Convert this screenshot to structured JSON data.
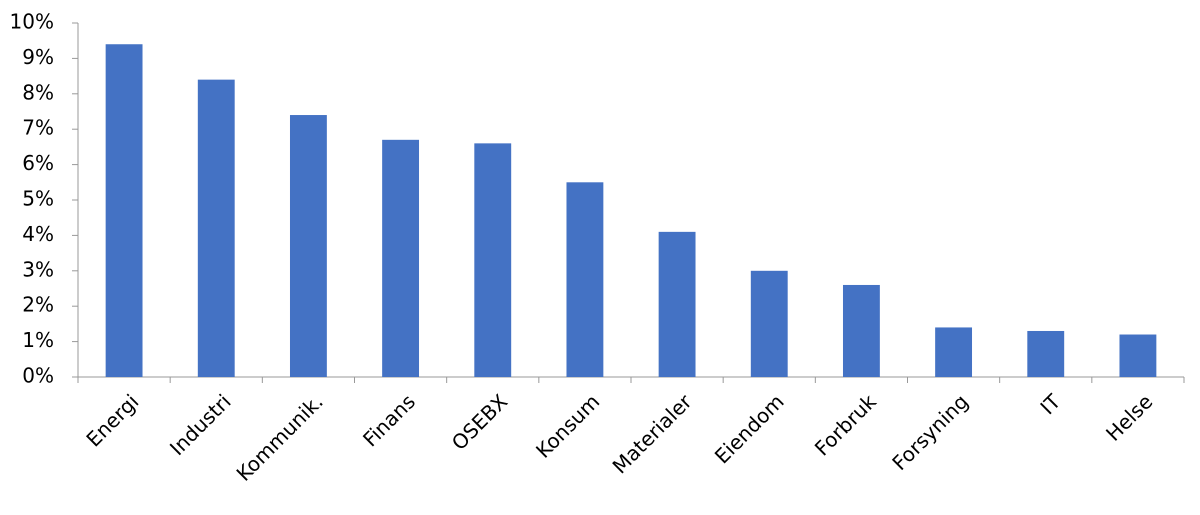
{
  "chart_data": {
    "type": "bar",
    "categories": [
      "Energi",
      "Industri",
      "Kommunik.",
      "Finans",
      "OSEBX",
      "Konsum",
      "Materialer",
      "Eiendom",
      "Forbruk",
      "Forsyning",
      "IT",
      "Helse"
    ],
    "values": [
      9.4,
      8.4,
      7.4,
      6.7,
      6.6,
      5.5,
      4.1,
      3.0,
      2.6,
      1.4,
      1.3,
      1.2
    ],
    "color": "#4472c4",
    "ylim": [
      0,
      10
    ],
    "yticks": [
      {
        "value": 0,
        "label": "0%"
      },
      {
        "value": 1,
        "label": "1%"
      },
      {
        "value": 2,
        "label": "2%"
      },
      {
        "value": 3,
        "label": "3%"
      },
      {
        "value": 4,
        "label": "4%"
      },
      {
        "value": 5,
        "label": "5%"
      },
      {
        "value": 6,
        "label": "6%"
      },
      {
        "value": 7,
        "label": "7%"
      },
      {
        "value": 8,
        "label": "8%"
      },
      {
        "value": 9,
        "label": "9%"
      },
      {
        "value": 10,
        "label": "10%"
      }
    ],
    "grid": false
  }
}
